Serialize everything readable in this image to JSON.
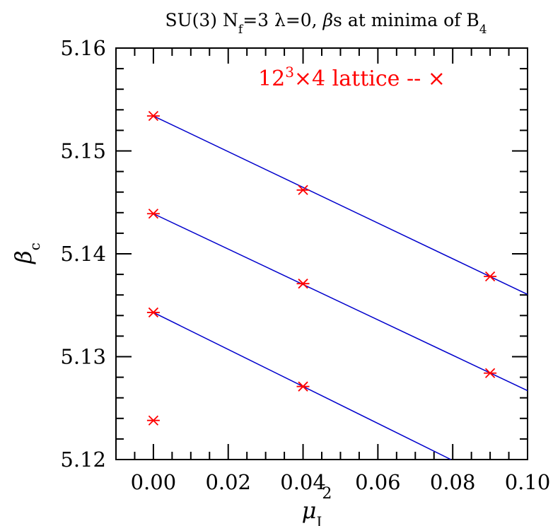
{
  "chart_data": {
    "type": "scatter",
    "title": {
      "prefix": "SU(3) N",
      "nf_sub": "f",
      "middle": "=3 λ=0, ",
      "beta": "β",
      "suffix": "s at minima of B",
      "b_sub": "4"
    },
    "xlabel": {
      "symbol": "μ",
      "sub": "I",
      "sup": "2"
    },
    "ylabel": {
      "symbol": "β",
      "sub": "c"
    },
    "xlim": [
      -0.01,
      0.1
    ],
    "ylim": [
      5.12,
      5.16
    ],
    "xticks": [
      "0.00",
      "0.02",
      "0.04",
      "0.06",
      "0.08",
      "0.10"
    ],
    "yticks": [
      "5.12",
      "5.13",
      "5.14",
      "5.15",
      "5.16"
    ],
    "legend": {
      "base": "12",
      "sup": "3",
      "rest": "×4 lattice -- ",
      "marker": "×",
      "position": "top-right",
      "color": "#ff0000"
    },
    "marker_color": "#ff0000",
    "fit_color": "#0000cc",
    "points": [
      {
        "x": 0.0,
        "y": 5.1534
      },
      {
        "x": 0.0,
        "y": 5.1439
      },
      {
        "x": 0.0,
        "y": 5.1343
      },
      {
        "x": 0.0,
        "y": 5.1238
      },
      {
        "x": 0.04,
        "y": 5.1462
      },
      {
        "x": 0.04,
        "y": 5.1371
      },
      {
        "x": 0.04,
        "y": 5.1271
      },
      {
        "x": 0.09,
        "y": 5.1378
      },
      {
        "x": 0.09,
        "y": 5.1284
      }
    ],
    "fits": [
      {
        "intercept": 5.1534,
        "slope": -0.1735
      },
      {
        "intercept": 5.1439,
        "slope": -0.172
      },
      {
        "intercept": 5.1343,
        "slope": -0.1798
      }
    ]
  }
}
